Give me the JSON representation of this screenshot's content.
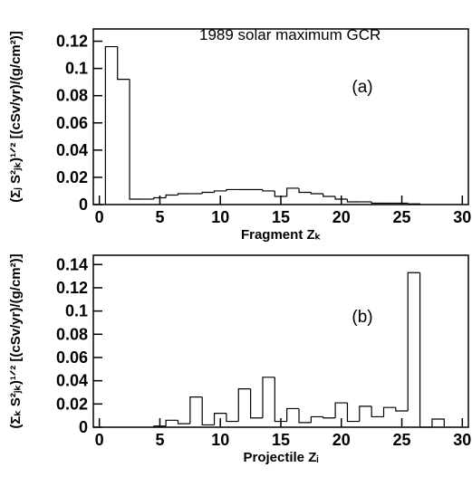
{
  "chart_data": [
    {
      "type": "histogram",
      "title": "1989 solar maximum GCR",
      "annotation": "(a)",
      "x_label": "Fragment Zₖ",
      "y_label": "(Σⱼ S²ⱼₖ)¹ᐟ² [(cSv/yr)/(g/cm²)]",
      "bins": [
        0.5,
        1.5,
        2.5,
        3.5,
        4.5,
        5.5,
        6.5,
        7.5,
        8.5,
        9.5,
        10.5,
        11.5,
        12.5,
        13.5,
        14.5,
        15.5,
        16.5,
        17.5,
        18.5,
        19.5,
        20.5,
        21.5,
        22.5,
        23.5,
        24.5,
        25.5,
        26.5
      ],
      "values": [
        0.116,
        0.092,
        0.004,
        0.004,
        0.005,
        0.007,
        0.008,
        0.008,
        0.009,
        0.01,
        0.011,
        0.011,
        0.011,
        0.01,
        0.006,
        0.012,
        0.009,
        0.008,
        0.006,
        0.004,
        0.002,
        0.002,
        0.001,
        0.001,
        0.001,
        0.0005
      ],
      "color": "#000000",
      "xlim": [
        -0.5,
        30.5
      ],
      "xticks": [
        0,
        5,
        10,
        15,
        20,
        25,
        30
      ],
      "ylim": [
        0,
        0.129
      ],
      "yticks": [
        0,
        0.02,
        0.04,
        0.06,
        0.08,
        0.1,
        0.12
      ]
    },
    {
      "type": "histogram",
      "annotation": "(b)",
      "x_label": "Projectile Zᵢ",
      "y_label": "(Σₖ S²ⱼₖ)¹ᐟ² [(cSv/yr)/(g/cm²)]",
      "bins": [
        4.5,
        5.5,
        6.5,
        7.5,
        8.5,
        9.5,
        10.5,
        11.5,
        12.5,
        13.5,
        14.5,
        15.5,
        16.5,
        17.5,
        18.5,
        19.5,
        20.5,
        21.5,
        22.5,
        23.5,
        24.5,
        25.5,
        26.5,
        27.5,
        28.5
      ],
      "values": [
        0.001,
        0.006,
        0.003,
        0.026,
        0.002,
        0.012,
        0.005,
        0.033,
        0.008,
        0.043,
        0.005,
        0.016,
        0.004,
        0.009,
        0.008,
        0.021,
        0.005,
        0.018,
        0.009,
        0.017,
        0.014,
        0.133,
        0,
        0.007
      ],
      "color": "#000000",
      "xlim": [
        -0.5,
        30.5
      ],
      "xticks": [
        0,
        5,
        10,
        15,
        20,
        25,
        30
      ],
      "ylim": [
        0,
        0.148
      ],
      "yticks": [
        0,
        0.02,
        0.04,
        0.06,
        0.08,
        0.1,
        0.12,
        0.14
      ]
    }
  ]
}
